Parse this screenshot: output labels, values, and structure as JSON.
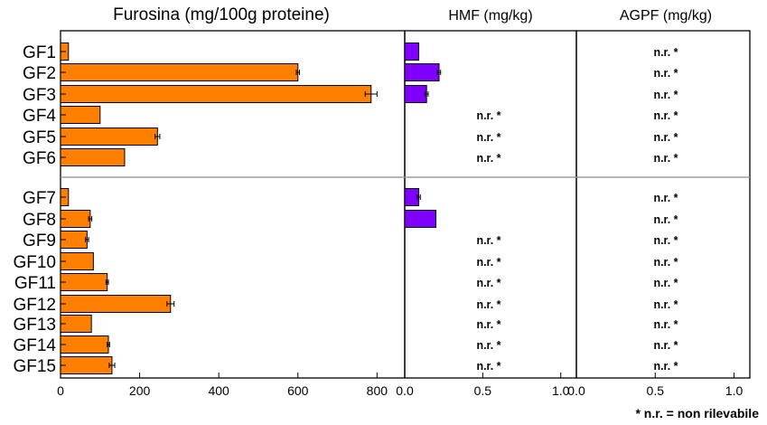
{
  "chart_data": {
    "type": "bar",
    "orientation": "horizontal",
    "categories": [
      "GF1",
      "GF2",
      "GF3",
      "GF4",
      "GF5",
      "GF6",
      "GF7",
      "GF8",
      "GF9",
      "GF10",
      "GF11",
      "GF12",
      "GF13",
      "GF14",
      "GF15"
    ],
    "groups": [
      [
        "GF1",
        "GF2",
        "GF3",
        "GF4",
        "GF5",
        "GF6"
      ],
      [
        "GF7",
        "GF8",
        "GF9",
        "GF10",
        "GF11",
        "GF12",
        "GF13",
        "GF14",
        "GF15"
      ]
    ],
    "panels": [
      {
        "title": "Furosina (mg/100g proteine)",
        "color": "#ff8000",
        "xlim": [
          0,
          870
        ],
        "ticks": [
          0,
          200,
          400,
          600,
          800
        ],
        "tick_labels": [
          "0",
          "200",
          "400",
          "600",
          "800"
        ],
        "values": [
          20,
          600,
          785,
          100,
          245,
          162,
          20,
          75,
          67,
          83,
          118,
          278,
          78,
          121,
          130
        ],
        "errors": [
          0,
          4,
          15,
          0,
          6,
          0,
          0,
          4,
          4,
          0,
          3,
          9,
          0,
          3,
          7
        ],
        "nr_text": "n.r. *"
      },
      {
        "title": "HMF (mg/kg)",
        "color": "#8000ff",
        "xlim": [
          0,
          1.1
        ],
        "ticks": [
          0,
          0.5,
          1.0
        ],
        "tick_labels": [
          "0.0",
          "0.5",
          "1.0"
        ],
        "values": [
          0.09,
          0.22,
          0.14,
          null,
          null,
          null,
          0.09,
          0.2,
          null,
          null,
          null,
          null,
          null,
          null,
          null
        ],
        "errors": [
          0,
          0.01,
          0.01,
          0,
          0,
          0,
          0.01,
          0,
          0,
          0,
          0,
          0,
          0,
          0,
          0
        ],
        "nr_text": "n.r. *"
      },
      {
        "title": "AGPF (mg/kg)",
        "color": "#8000ff",
        "xlim": [
          0,
          1.1
        ],
        "ticks": [
          0,
          0.5,
          1.0
        ],
        "tick_labels": [
          "0.0",
          "0.5",
          "1.0"
        ],
        "values": [
          null,
          null,
          null,
          null,
          null,
          null,
          null,
          null,
          null,
          null,
          null,
          null,
          null,
          null,
          null
        ],
        "errors": [
          0,
          0,
          0,
          0,
          0,
          0,
          0,
          0,
          0,
          0,
          0,
          0,
          0,
          0,
          0
        ],
        "nr_text": "n.r. *"
      }
    ],
    "footnote": "* n.r. = non rilevabile"
  }
}
